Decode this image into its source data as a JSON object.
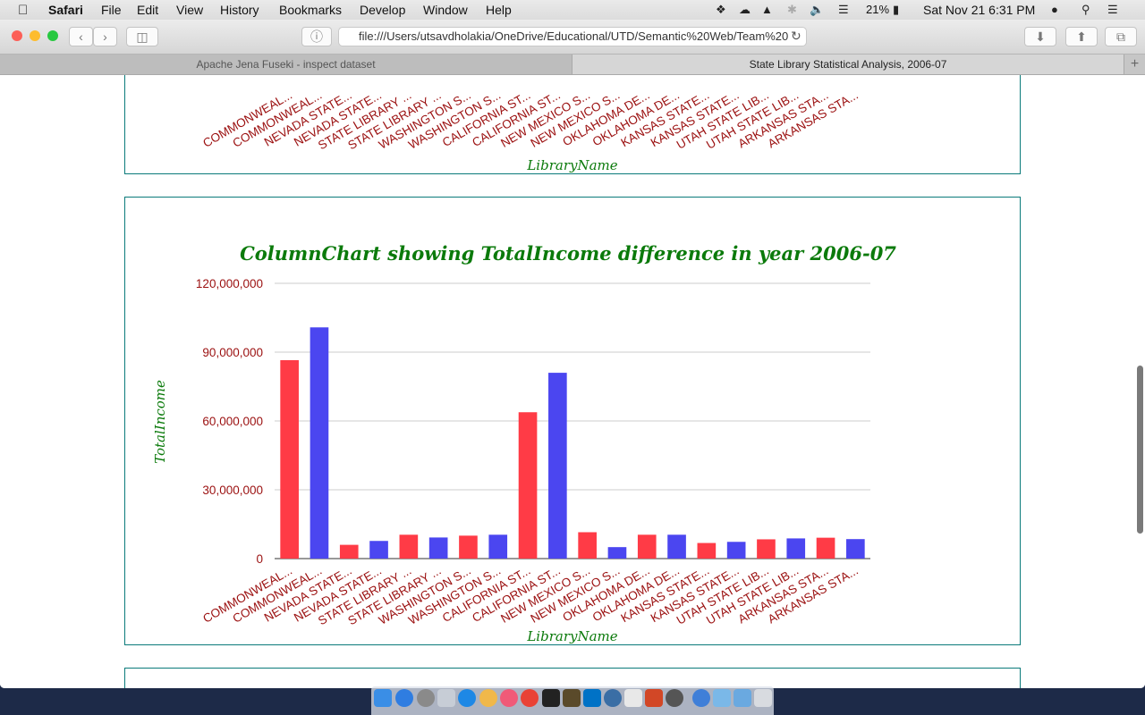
{
  "menubar": {
    "app_name": "Safari",
    "menus": [
      "File",
      "Edit",
      "View",
      "History",
      "Bookmarks",
      "Develop",
      "Window",
      "Help"
    ],
    "battery": "21%",
    "datetime": "Sat Nov 21  6:31 PM"
  },
  "toolbar": {
    "url": "file:///Users/utsavdholakia/OneDrive/Educational/UTD/Semantic%20Web/Team%20"
  },
  "tabs": [
    {
      "label": "Apache Jena Fuseki - inspect dataset",
      "active": false
    },
    {
      "label": "State Library Statistical Analysis, 2006-07",
      "active": true
    }
  ],
  "prev_chart": {
    "categories": [
      "COMMONWEAL...",
      "COMMONWEAL...",
      "NEVADA STATE...",
      "NEVADA STATE...",
      "STATE LIBRARY ...",
      "STATE LIBRARY ...",
      "WASHINGTON S...",
      "WASHINGTON S...",
      "CALIFORNIA ST...",
      "CALIFORNIA ST...",
      "NEW MEXICO S...",
      "NEW MEXICO S...",
      "OKLAHOMA DE...",
      "OKLAHOMA DE...",
      "KANSAS STATE...",
      "KANSAS STATE...",
      "UTAH STATE LIB...",
      "UTAH STATE LIB...",
      "ARKANSAS STA...",
      "ARKANSAS STA..."
    ],
    "xlabel": "LibraryName"
  },
  "chart_data": {
    "type": "bar",
    "title": "ColumnChart showing TotalIncome difference in year 2006-07",
    "xlabel": "LibraryName",
    "ylabel": "TotalIncome",
    "ylim": [
      0,
      120000000
    ],
    "yticks": [
      "0",
      "30,000,000",
      "60,000,000",
      "90,000,000",
      "120,000,000"
    ],
    "grid": true,
    "categories": [
      "COMMONWEAL...",
      "COMMONWEAL...",
      "NEVADA STATE...",
      "NEVADA STATE...",
      "STATE LIBRARY ...",
      "STATE LIBRARY ...",
      "WASHINGTON S...",
      "WASHINGTON S...",
      "CALIFORNIA ST...",
      "CALIFORNIA ST...",
      "NEW MEXICO S...",
      "NEW MEXICO S...",
      "OKLAHOMA DE...",
      "OKLAHOMA DE...",
      "KANSAS STATE...",
      "KANSAS STATE...",
      "UTAH STATE LIB...",
      "UTAH STATE LIB...",
      "ARKANSAS STA...",
      "ARKANSAS STA..."
    ],
    "values": [
      86500000,
      100800000,
      6000000,
      7700000,
      10400000,
      9200000,
      10000000,
      10400000,
      63800000,
      81000000,
      11500000,
      5000000,
      10400000,
      10400000,
      6800000,
      7300000,
      8400000,
      8800000,
      9100000,
      8500000
    ],
    "bar_colors": [
      "#ff3b46",
      "#4b46f0"
    ]
  }
}
